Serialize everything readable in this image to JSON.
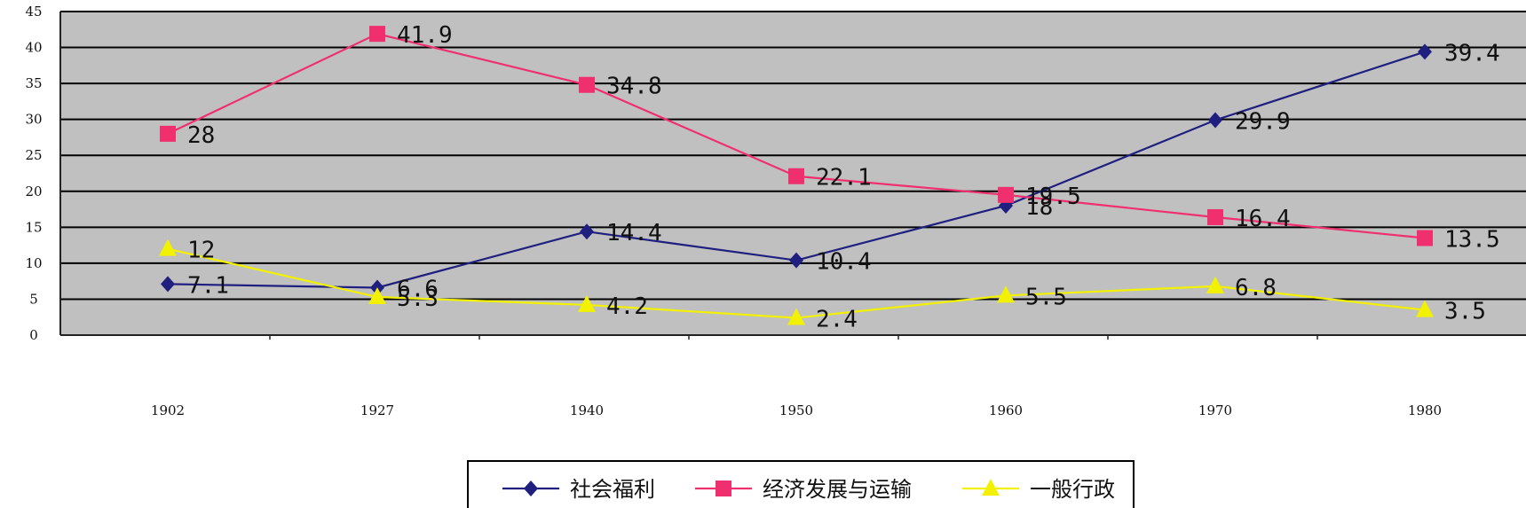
{
  "chart_data": {
    "type": "line",
    "categories": [
      "1902",
      "1927",
      "1940",
      "1950",
      "1960",
      "1970",
      "1980"
    ],
    "yticks": [
      "0",
      "5",
      "10",
      "15",
      "20",
      "25",
      "30",
      "35",
      "40",
      "45"
    ],
    "ylim": [
      0,
      45
    ],
    "grid": true,
    "legend_position": "bottom",
    "series": [
      {
        "name": "社会福利",
        "color": "#1f1f80",
        "marker": "diamond",
        "values": [
          7.1,
          6.6,
          14.4,
          10.4,
          18,
          29.9,
          39.4
        ],
        "labels": [
          "7.1",
          "6.6",
          "14.4",
          "10.4",
          "18",
          "29.9",
          "39.4"
        ]
      },
      {
        "name": "经济发展与运输",
        "color": "#f0306e",
        "marker": "square",
        "values": [
          28,
          41.9,
          34.8,
          22.1,
          19.5,
          16.4,
          13.5
        ],
        "labels": [
          "28",
          "41.9",
          "34.8",
          "22.1",
          "19.5",
          "16.4",
          "13.5"
        ]
      },
      {
        "name": "一般行政",
        "color": "#f2f200",
        "marker": "triangle",
        "values": [
          12,
          5.3,
          4.2,
          2.4,
          5.5,
          6.8,
          3.5
        ],
        "labels": [
          "12",
          "5.3",
          "4.2",
          "2.4",
          "5.5",
          "6.8",
          "3.5"
        ]
      }
    ]
  }
}
